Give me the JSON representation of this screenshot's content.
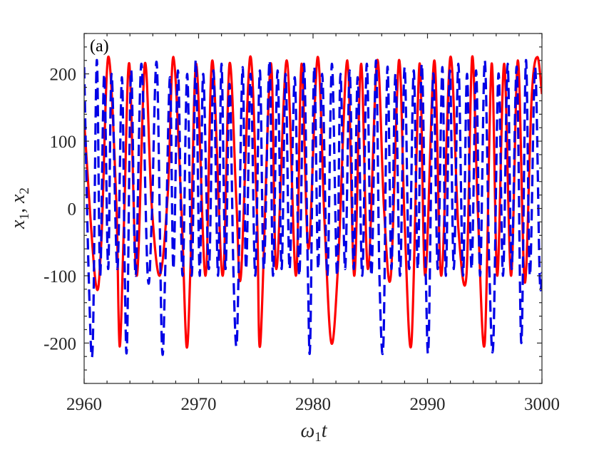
{
  "chart_data": {
    "type": "line",
    "panel_label": "(a)",
    "xlabel": "ω₁t",
    "ylabel": "x₁, x₂",
    "xlim": [
      2960,
      3000
    ],
    "ylim": [
      -260,
      260
    ],
    "xticks": [
      2960,
      2970,
      2980,
      2990,
      3000
    ],
    "yticks": [
      -200,
      -100,
      0,
      100,
      200
    ],
    "xtick_labels": [
      "2960",
      "2970",
      "2980",
      "2990",
      "3000"
    ],
    "ytick_labels": [
      "-200",
      "-100",
      "0",
      "100",
      "200"
    ],
    "grid": false,
    "series": [
      {
        "key": "x1",
        "color": "#ff0000",
        "style": "solid",
        "x": [
          2960.0,
          2961.0,
          2961.5,
          2962.1,
          2962.8,
          2963.1,
          2963.5,
          2963.95,
          2964.6,
          2965.3,
          2965.9,
          2966.6,
          2967.3,
          2967.8,
          2968.5,
          2968.95,
          2969.3,
          2969.8,
          2970.6,
          2971.2,
          2972.1,
          2972.7,
          2973.3,
          2973.7,
          2974.5,
          2975.1,
          2975.4,
          2976.3,
          2976.8,
          2977.7,
          2978.5,
          2979.0,
          2979.6,
          2980.4,
          2981.0,
          2981.6,
          2982.2,
          2983.0,
          2983.6,
          2984.2,
          2984.8,
          2985.6,
          2986.2,
          2986.8,
          2987.5,
          2988.0,
          2988.6,
          2989.3,
          2989.8,
          2990.6,
          2991.2,
          2992.0,
          2992.7,
          2993.4,
          2993.9,
          2994.4,
          2995.0,
          2995.6,
          2996.1,
          2996.7,
          2997.3,
          2997.9,
          2998.5,
          2999.1,
          2999.6,
          3000.0
        ],
        "y": [
          130,
          -110,
          -50,
          225,
          15,
          -205,
          -10,
          215,
          -100,
          215,
          5,
          -100,
          20,
          225,
          0,
          -205,
          -80,
          215,
          -100,
          220,
          -100,
          215,
          10,
          -100,
          225,
          -10,
          -200,
          215,
          -90,
          220,
          -100,
          215,
          -60,
          225,
          -20,
          -200,
          -80,
          220,
          -100,
          215,
          -90,
          220,
          0,
          -100,
          220,
          -20,
          -200,
          215,
          -100,
          220,
          -100,
          225,
          -30,
          -100,
          225,
          -5,
          -200,
          215,
          -100,
          215,
          -100,
          220,
          -110,
          165,
          225,
          170
        ]
      },
      {
        "key": "x2",
        "color": "#0000e6",
        "style": "dashed",
        "x": [
          2960.0,
          2960.4,
          2960.75,
          2961.1,
          2961.4,
          2961.75,
          2962.1,
          2962.4,
          2962.9,
          2963.3,
          2963.55,
          2963.75,
          2964.1,
          2964.5,
          2965.0,
          2965.55,
          2965.9,
          2966.35,
          2966.8,
          2967.1,
          2967.5,
          2967.8,
          2968.2,
          2968.6,
          2969.0,
          2969.4,
          2969.75,
          2970.1,
          2970.4,
          2970.9,
          2971.3,
          2971.7,
          2972.0,
          2972.35,
          2972.7,
          2973.05,
          2973.3,
          2973.5,
          2973.85,
          2974.15,
          2974.55,
          2974.95,
          2975.35,
          2975.7,
          2976.2,
          2976.5,
          2976.9,
          2977.25,
          2977.6,
          2977.95,
          2978.4,
          2978.8,
          2979.2,
          2979.55,
          2979.75,
          2980.1,
          2980.45,
          2980.8,
          2981.25,
          2981.65,
          2982.1,
          2982.4,
          2982.8,
          2983.2,
          2983.55,
          2983.9,
          2984.3,
          2984.7,
          2985.1,
          2985.5,
          2985.8,
          2986.15,
          2986.5,
          2986.85,
          2987.2,
          2987.6,
          2988.0,
          2988.4,
          2988.8,
          2989.15,
          2989.5,
          2989.85,
          2990.1,
          2990.5,
          2990.9,
          2991.3,
          2991.6,
          2991.95,
          2992.3,
          2992.7,
          2993.1,
          2993.45,
          2993.85,
          2994.25,
          2994.6,
          2995.0,
          2995.4,
          2995.75,
          2996.2,
          2996.6,
          2997.0,
          2997.35,
          2997.8,
          2998.2,
          2998.6,
          2998.95,
          2999.4,
          2999.8,
          3000.0
        ],
        "y": [
          210,
          -100,
          -205,
          220,
          -100,
          200,
          -90,
          200,
          -90,
          195,
          -100,
          -200,
          205,
          -100,
          215,
          -100,
          -20,
          215,
          -205,
          -80,
          195,
          -90,
          205,
          -100,
          200,
          -100,
          220,
          -100,
          200,
          -90,
          205,
          -100,
          215,
          -90,
          185,
          -100,
          -205,
          -90,
          210,
          -90,
          200,
          -100,
          205,
          -90,
          220,
          -100,
          205,
          -90,
          200,
          -90,
          195,
          -100,
          215,
          -100,
          -200,
          210,
          -90,
          200,
          -100,
          215,
          -100,
          200,
          -90,
          205,
          -90,
          195,
          -100,
          215,
          -100,
          220,
          -100,
          -200,
          210,
          -90,
          200,
          -100,
          210,
          -90,
          205,
          -90,
          215,
          -100,
          -200,
          200,
          -90,
          210,
          -100,
          205,
          -90,
          215,
          -100,
          200,
          -90,
          205,
          -100,
          220,
          -90,
          -200,
          200,
          -100,
          215,
          -90,
          210,
          -200,
          220,
          -100,
          210,
          -100,
          -95
        ]
      }
    ]
  }
}
